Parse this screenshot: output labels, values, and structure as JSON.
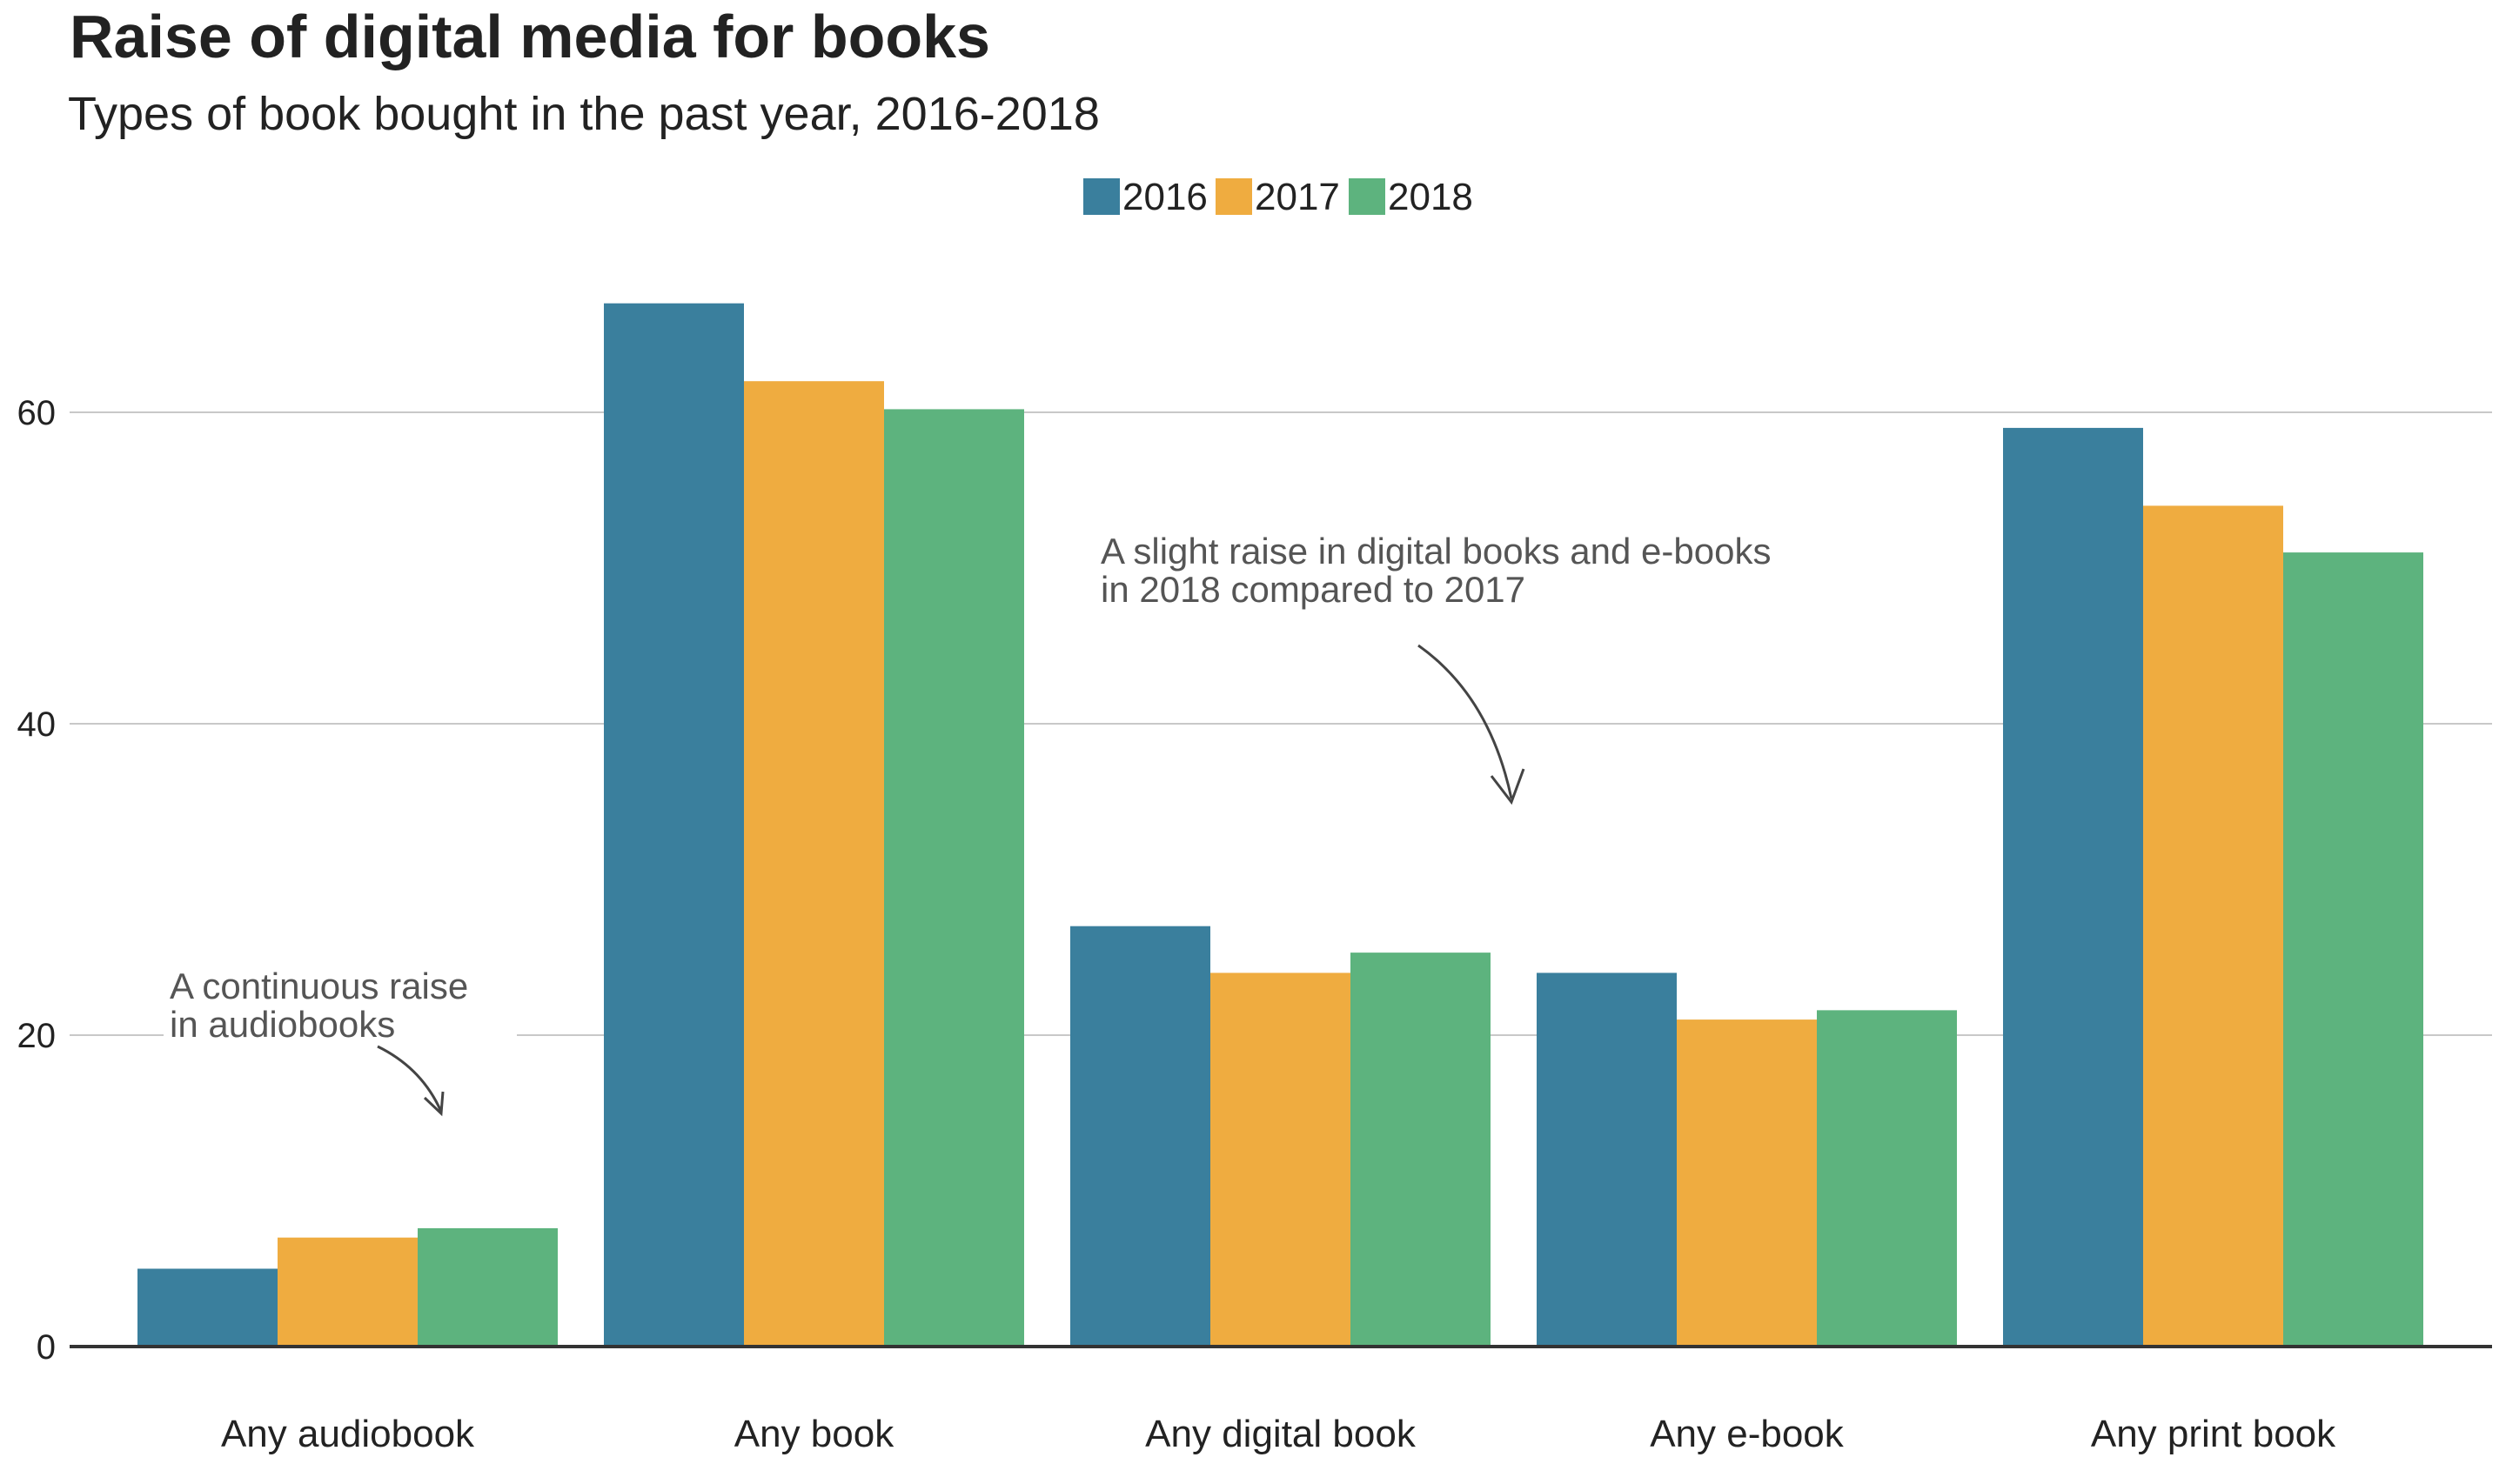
{
  "chart_data": {
    "type": "bar",
    "title": "Raise of digital media for books",
    "subtitle": "Types of book bought in the past year, 2016-2018",
    "categories": [
      "Any audiobook",
      "Any book",
      "Any digital book",
      "Any e-book",
      "Any print book"
    ],
    "series": [
      {
        "name": "2016",
        "color": "#3a7f9d",
        "values": [
          5,
          67,
          27,
          24,
          59
        ]
      },
      {
        "name": "2017",
        "color": "#efac40",
        "values": [
          7,
          62,
          24,
          21,
          54
        ]
      },
      {
        "name": "2018",
        "color": "#5db37e",
        "values": [
          7.6,
          60.2,
          25.3,
          21.6,
          51
        ]
      }
    ],
    "yticks": [
      0,
      20,
      40,
      60
    ],
    "ylim": [
      0,
      70
    ],
    "grid": true,
    "legend_position": "top-center",
    "annotations": [
      {
        "lines": [
          "A continuous raise",
          "in audiobooks"
        ]
      },
      {
        "lines": [
          "A slight raise in digital books and e-books",
          "in 2018 compared to 2017"
        ]
      }
    ]
  }
}
